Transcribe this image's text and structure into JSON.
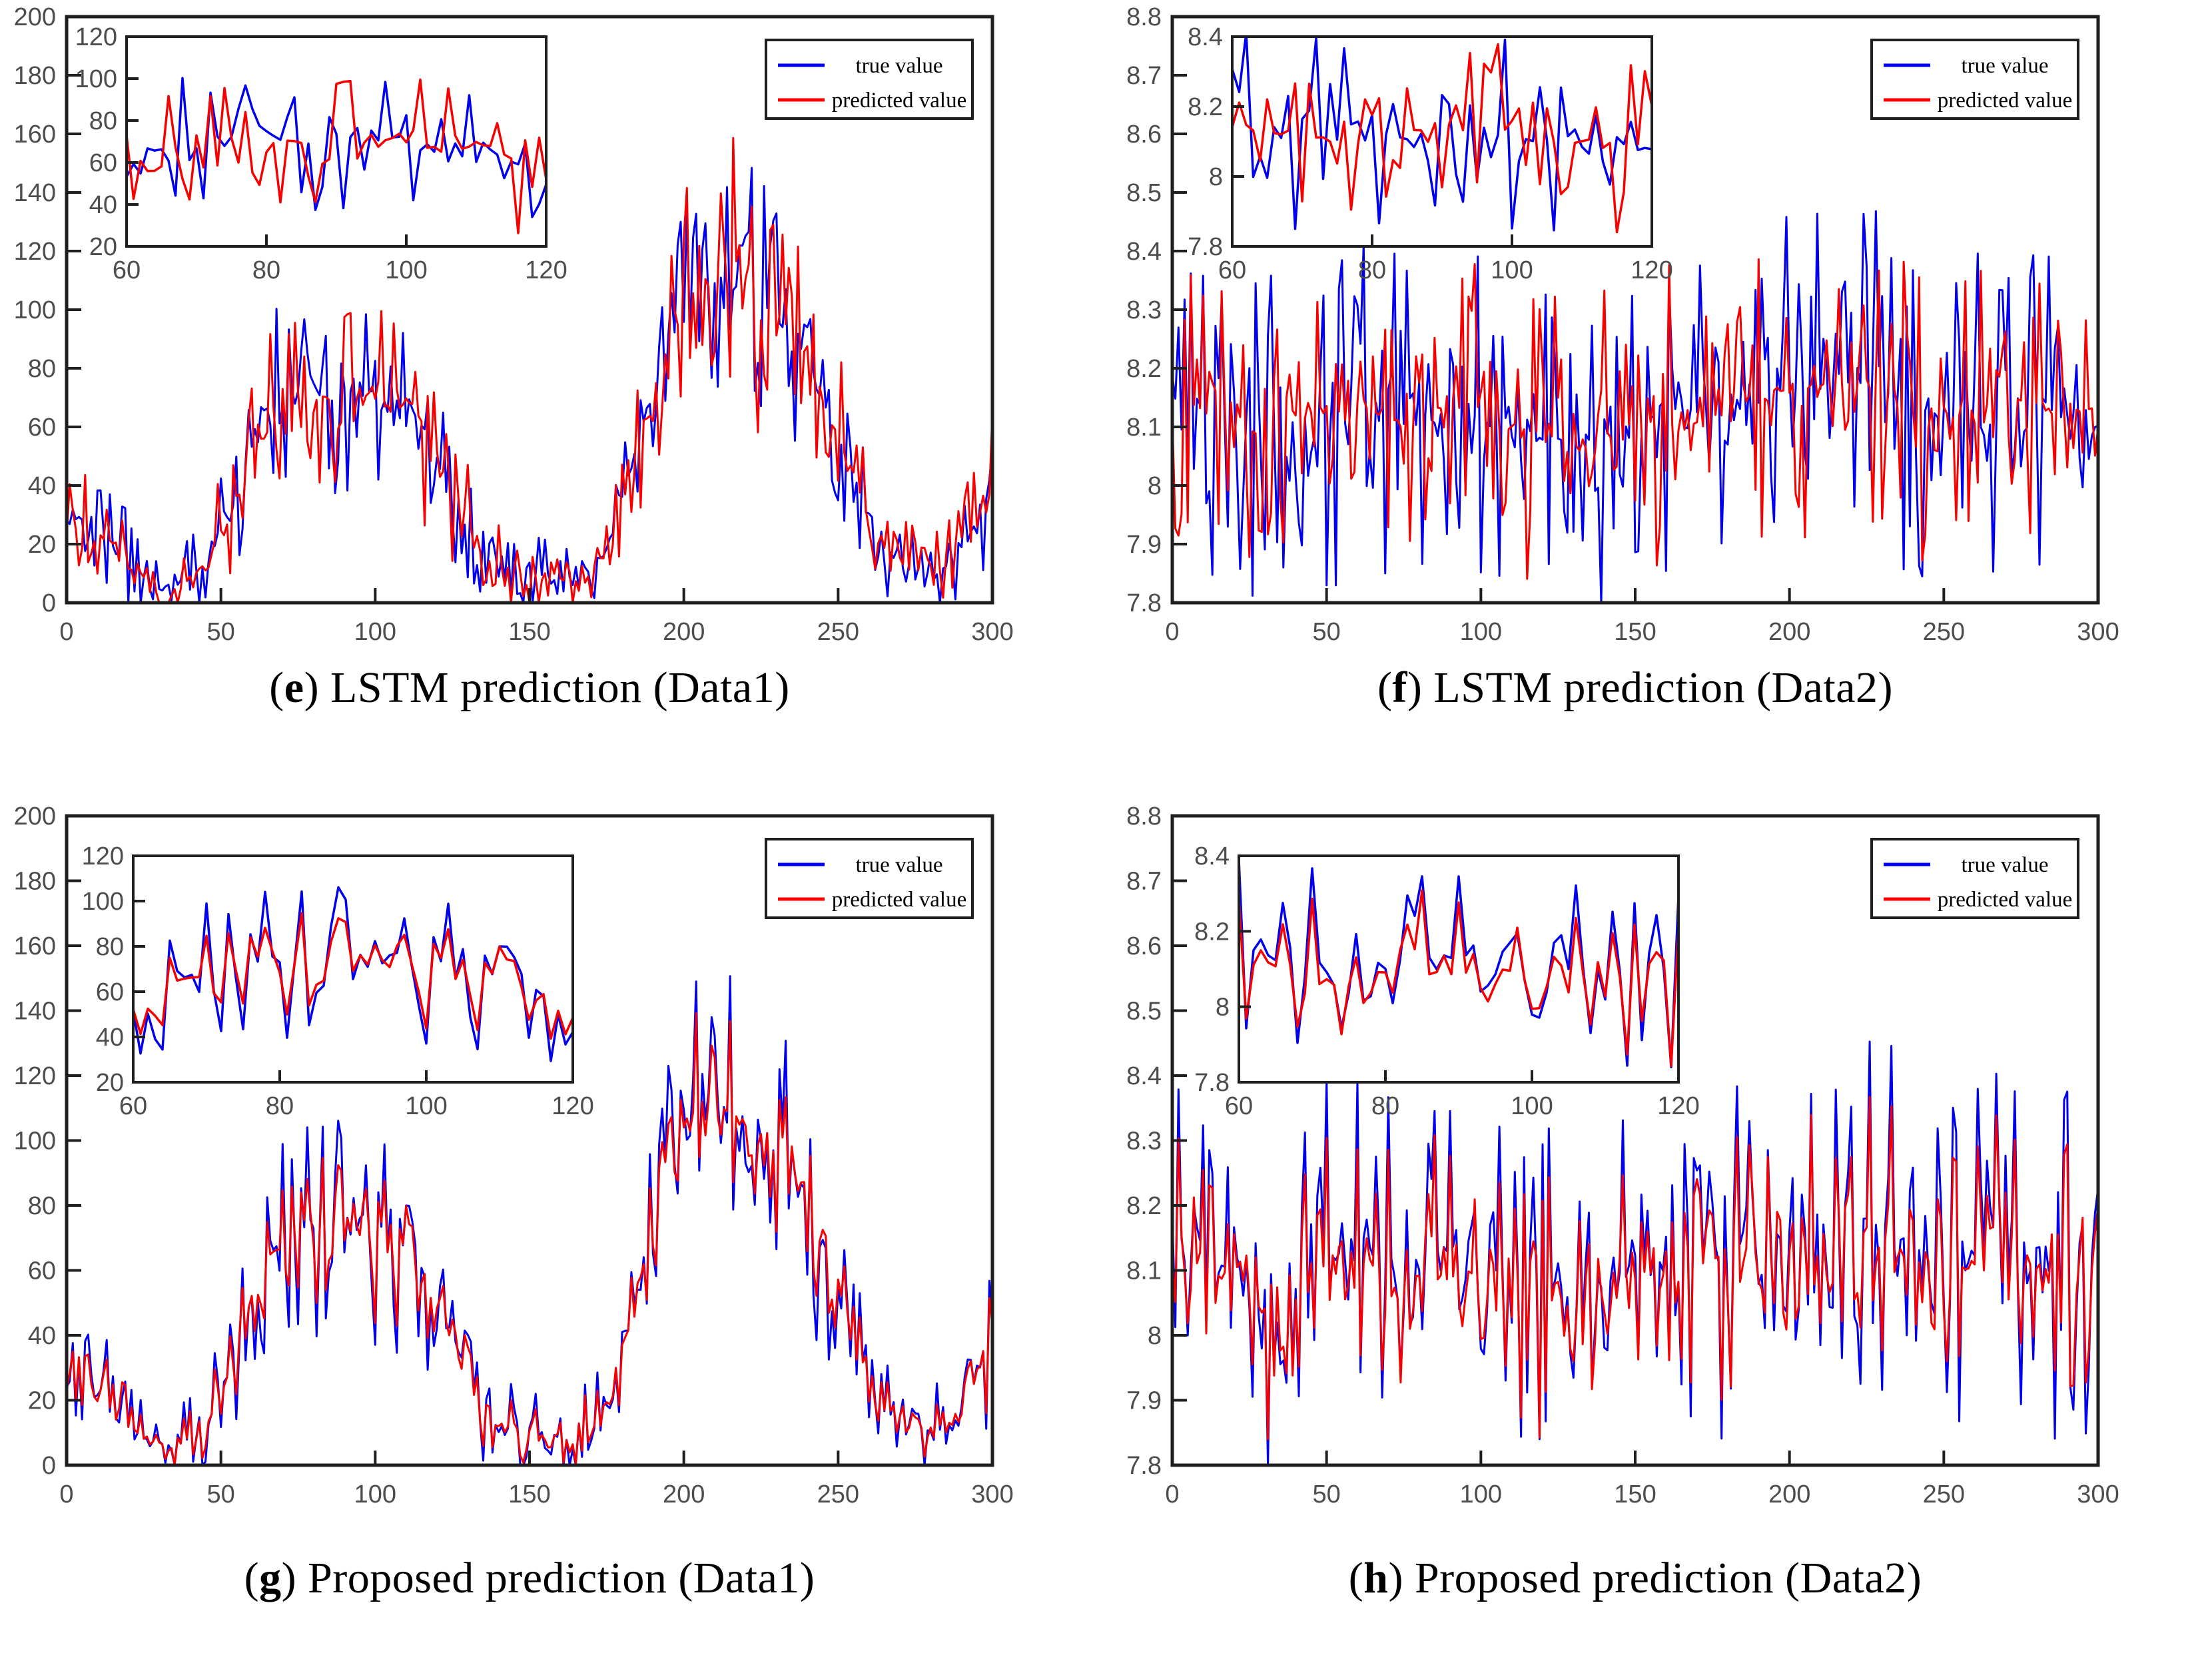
{
  "figure": {
    "background": "#ffffff",
    "colors": {
      "true_line": "#0000ee",
      "predicted_line": "#f70000",
      "frame": "#1f1f1f",
      "tick_label": "#4d4d4d",
      "inset_bg": "#ffffff",
      "legend_bg": "#ffffff",
      "legend_border": "#1f1f1f"
    }
  },
  "trends": {
    "data1": [
      [
        0,
        24
      ],
      [
        4,
        30
      ],
      [
        8,
        20
      ],
      [
        12,
        24
      ],
      [
        16,
        18
      ],
      [
        18,
        34
      ],
      [
        20,
        12
      ],
      [
        26,
        8
      ],
      [
        32,
        6
      ],
      [
        38,
        7
      ],
      [
        42,
        9
      ],
      [
        46,
        14
      ],
      [
        50,
        24
      ],
      [
        54,
        30
      ],
      [
        58,
        44
      ],
      [
        62,
        62
      ],
      [
        66,
        68
      ],
      [
        70,
        66
      ],
      [
        74,
        71
      ],
      [
        78,
        74
      ],
      [
        82,
        72
      ],
      [
        86,
        69
      ],
      [
        90,
        74
      ],
      [
        94,
        77
      ],
      [
        98,
        72
      ],
      [
        102,
        68
      ],
      [
        106,
        64
      ],
      [
        110,
        69
      ],
      [
        114,
        62
      ],
      [
        118,
        54
      ],
      [
        122,
        46
      ],
      [
        126,
        38
      ],
      [
        130,
        28
      ],
      [
        134,
        18
      ],
      [
        138,
        13
      ],
      [
        144,
        11
      ],
      [
        150,
        9
      ],
      [
        156,
        7
      ],
      [
        162,
        8
      ],
      [
        168,
        11
      ],
      [
        174,
        16
      ],
      [
        178,
        26
      ],
      [
        182,
        42
      ],
      [
        186,
        58
      ],
      [
        190,
        72
      ],
      [
        194,
        84
      ],
      [
        198,
        95
      ],
      [
        202,
        102
      ],
      [
        206,
        106
      ],
      [
        210,
        110
      ],
      [
        214,
        112
      ],
      [
        218,
        108
      ],
      [
        222,
        104
      ],
      [
        226,
        100
      ],
      [
        230,
        96
      ],
      [
        234,
        92
      ],
      [
        238,
        86
      ],
      [
        242,
        78
      ],
      [
        246,
        66
      ],
      [
        250,
        56
      ],
      [
        254,
        48
      ],
      [
        258,
        34
      ],
      [
        262,
        22
      ],
      [
        266,
        16
      ],
      [
        270,
        15
      ],
      [
        274,
        13
      ],
      [
        278,
        11
      ],
      [
        282,
        10
      ],
      [
        286,
        13
      ],
      [
        290,
        18
      ],
      [
        294,
        26
      ],
      [
        298,
        34
      ],
      [
        300,
        40
      ]
    ],
    "data2": [
      [
        0,
        8.12
      ],
      [
        15,
        8.14
      ],
      [
        30,
        8.09
      ],
      [
        45,
        8.12
      ],
      [
        60,
        8.13
      ],
      [
        75,
        8.11
      ],
      [
        90,
        8.14
      ],
      [
        105,
        8.1
      ],
      [
        120,
        8.09
      ],
      [
        135,
        8.06
      ],
      [
        150,
        8.11
      ],
      [
        165,
        8.13
      ],
      [
        180,
        8.12
      ],
      [
        195,
        8.16
      ],
      [
        210,
        8.17
      ],
      [
        225,
        8.18
      ],
      [
        240,
        8.13
      ],
      [
        255,
        8.12
      ],
      [
        270,
        8.15
      ],
      [
        285,
        8.13
      ],
      [
        300,
        8.1
      ]
    ]
  },
  "chart_data": [
    {
      "id": "e",
      "type": "line",
      "caption": {
        "pre": "(",
        "letter": "e",
        "post": ")",
        "text": " LSTM prediction (Data1)"
      },
      "x": {
        "range": [
          0,
          300
        ],
        "ticks": [
          "0",
          "50",
          "100",
          "150",
          "200",
          "250",
          "300"
        ]
      },
      "y": {
        "range": [
          0,
          200
        ],
        "ticks": [
          "0",
          "20",
          "40",
          "60",
          "80",
          "100",
          "120",
          "140",
          "160",
          "180",
          "200"
        ]
      },
      "inset": {
        "x_range": [
          60,
          120
        ],
        "x_ticks": [
          "60",
          "80",
          "100",
          "120"
        ],
        "y_range": [
          20,
          120
        ],
        "y_ticks": [
          "20",
          "40",
          "60",
          "80",
          "100",
          "120"
        ]
      },
      "points_step": 1,
      "series": [
        {
          "name": "true value",
          "role": "true",
          "trend": "data1",
          "seed": 3,
          "noise": 40,
          "noise_profile": "scaled"
        },
        {
          "name": "predicted value",
          "role": "predicted",
          "trend": "data1",
          "seed": 7,
          "noise": 42,
          "noise_profile": "scaled"
        }
      ]
    },
    {
      "id": "f",
      "type": "line",
      "caption": {
        "pre": "(",
        "letter": "f",
        "post": ")",
        "text": " LSTM prediction (Data2)"
      },
      "x": {
        "range": [
          0,
          300
        ],
        "ticks": [
          "0",
          "50",
          "100",
          "150",
          "200",
          "250",
          "300"
        ]
      },
      "y": {
        "range": [
          7.8,
          8.8
        ],
        "ticks": [
          "7.8",
          "7.9",
          "8",
          "8.1",
          "8.2",
          "8.3",
          "8.4",
          "8.5",
          "8.6",
          "8.7",
          "8.8"
        ]
      },
      "inset": {
        "x_range": [
          60,
          120
        ],
        "x_ticks": [
          "60",
          "80",
          "100",
          "120"
        ],
        "y_range": [
          7.8,
          8.4
        ],
        "y_ticks": [
          "7.8",
          "8",
          "8.2",
          "8.4"
        ]
      },
      "points_step": 1,
      "series": [
        {
          "name": "true value",
          "role": "true",
          "trend": "data2",
          "seed": 11,
          "noise": 0.3,
          "noise_profile": "flat"
        },
        {
          "name": "predicted value",
          "role": "predicted",
          "trend": "data2",
          "seed": 17,
          "noise": 0.26,
          "noise_profile": "flat"
        }
      ]
    },
    {
      "id": "g",
      "type": "line",
      "caption": {
        "pre": "(",
        "letter": "g",
        "post": ")",
        "text": " Proposed prediction (Data1)"
      },
      "x": {
        "range": [
          0,
          300
        ],
        "ticks": [
          "0",
          "50",
          "100",
          "150",
          "200",
          "250",
          "300"
        ]
      },
      "y": {
        "range": [
          0,
          200
        ],
        "ticks": [
          "0",
          "20",
          "40",
          "60",
          "80",
          "100",
          "120",
          "140",
          "160",
          "180",
          "200"
        ]
      },
      "inset": {
        "x_range": [
          60,
          120
        ],
        "x_ticks": [
          "60",
          "80",
          "100",
          "120"
        ],
        "y_range": [
          20,
          120
        ],
        "y_ticks": [
          "20",
          "40",
          "60",
          "80",
          "100",
          "120"
        ]
      },
      "points_step": 1,
      "series": [
        {
          "name": "true value",
          "role": "true",
          "trend": "data1",
          "seed": 5,
          "noise": 40,
          "noise_profile": "scaled"
        },
        {
          "name": "predicted value",
          "role": "predicted",
          "trend": "data1",
          "seed": 5,
          "noise": 26,
          "seed2": 9,
          "noise2": 6,
          "noise_profile": "scaled"
        }
      ]
    },
    {
      "id": "h",
      "type": "line",
      "caption": {
        "pre": "(",
        "letter": "h",
        "post": ")",
        "text": " Proposed prediction (Data2)"
      },
      "x": {
        "range": [
          0,
          300
        ],
        "ticks": [
          "0",
          "50",
          "100",
          "150",
          "200",
          "250",
          "300"
        ]
      },
      "y": {
        "range": [
          7.8,
          8.8
        ],
        "ticks": [
          "7.8",
          "7.9",
          "8",
          "8.1",
          "8.2",
          "8.3",
          "8.4",
          "8.5",
          "8.6",
          "8.7",
          "8.8"
        ]
      },
      "inset": {
        "x_range": [
          60,
          120
        ],
        "x_ticks": [
          "60",
          "80",
          "100",
          "120"
        ],
        "y_range": [
          7.8,
          8.4
        ],
        "y_ticks": [
          "7.8",
          "8",
          "8.2",
          "8.4"
        ]
      },
      "points_step": 1,
      "series": [
        {
          "name": "true value",
          "role": "true",
          "trend": "data2",
          "seed": 19,
          "noise": 0.3,
          "noise_profile": "flat"
        },
        {
          "name": "predicted value",
          "role": "predicted",
          "trend": "data2",
          "seed": 19,
          "noise": 0.22,
          "seed2": 23,
          "noise2": 0.05,
          "offset": -0.015,
          "noise_profile": "flat"
        }
      ]
    }
  ]
}
